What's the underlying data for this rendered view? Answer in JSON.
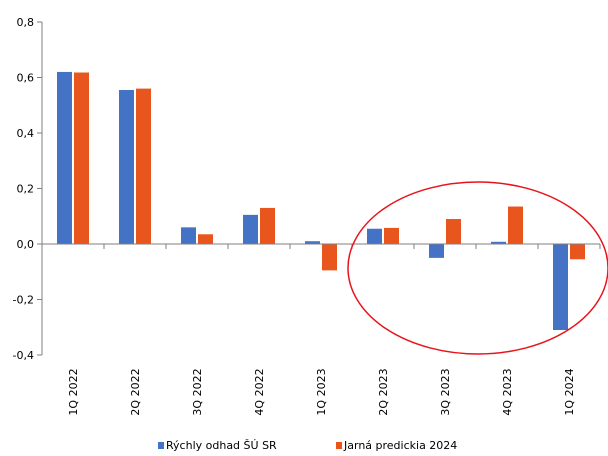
{
  "chart_data": {
    "type": "bar",
    "title": "",
    "xlabel": "",
    "ylabel": "",
    "ylim": [
      -0.4,
      0.8
    ],
    "y_ticks": [
      "-0,4",
      "-0,2",
      "0,0",
      "0,2",
      "0,4",
      "0,6",
      "0,8"
    ],
    "categories": [
      "1Q 2022",
      "2Q 2022",
      "3Q 2022",
      "4Q 2022",
      "1Q 2023",
      "2Q 2023",
      "3Q 2023",
      "4Q 2023",
      "1Q 2024"
    ],
    "series": [
      {
        "name": "Rýchly odhad ŠÚ SR",
        "color": "#4472C4",
        "values": [
          0.62,
          0.555,
          0.06,
          0.105,
          0.01,
          0.055,
          -0.05,
          0.008,
          -0.31
        ]
      },
      {
        "name": "Jarná predickia 2024",
        "color": "#E8561E",
        "values": [
          0.618,
          0.56,
          0.035,
          0.13,
          -0.095,
          0.058,
          0.09,
          0.135,
          -0.055
        ]
      }
    ],
    "grid": false,
    "legend_position": "bottom",
    "annotation": {
      "shape": "ellipse",
      "color": "#E8141B"
    }
  }
}
